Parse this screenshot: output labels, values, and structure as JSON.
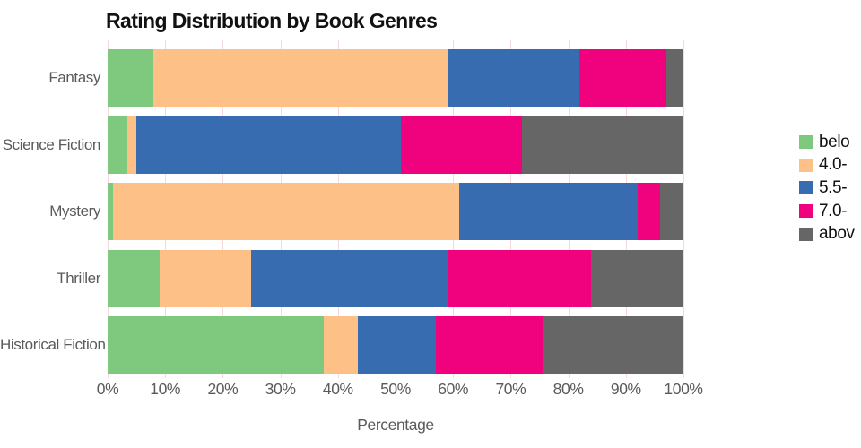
{
  "chart_data": {
    "type": "bar",
    "orientation": "horizontal",
    "stacked": true,
    "title": "Rating Distribution by Book Genres",
    "xlabel": "Percentage",
    "categories": [
      "Fantasy",
      "Science Fiction",
      "Mystery",
      "Thriller",
      "Historical Fiction"
    ],
    "series": [
      {
        "label_visible": "belo",
        "color": "#7fc97f",
        "values": [
          8,
          3.5,
          1,
          9,
          37.5
        ]
      },
      {
        "label_visible": "4.0-",
        "color": "#fdc086",
        "values": [
          51,
          1.5,
          60,
          16,
          6
        ]
      },
      {
        "label_visible": "5.5-",
        "color": "#386cb0",
        "values": [
          23,
          46,
          31,
          34,
          13.5
        ]
      },
      {
        "label_visible": "7.0-",
        "color": "#f0027f",
        "values": [
          15,
          21,
          4,
          25,
          18.5
        ]
      },
      {
        "label_visible": "abov",
        "color": "#666666",
        "values": [
          3,
          28,
          4,
          16,
          24.5
        ]
      }
    ],
    "xticks": [
      "0%",
      "10%",
      "20%",
      "30%",
      "40%",
      "50%",
      "60%",
      "70%",
      "80%",
      "90%",
      "100%"
    ],
    "xlim": [
      0,
      100
    ],
    "grid": true,
    "grid_color": "#f6d9d9",
    "legend_position": "right-clipped",
    "text_color_labels": "#5a5a5a",
    "text_color_title": "#111111"
  }
}
